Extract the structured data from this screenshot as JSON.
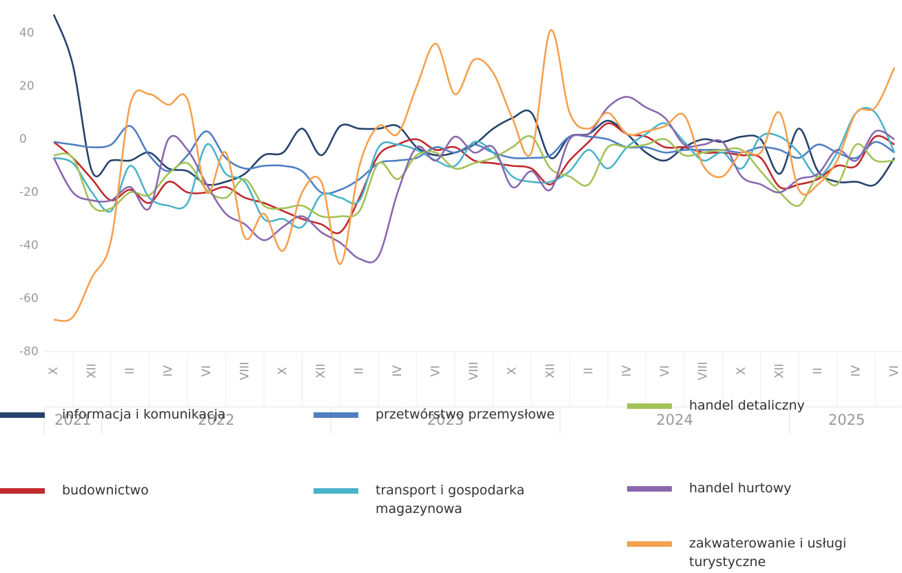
{
  "chart_data": {
    "type": "line",
    "categories": [
      "X",
      null,
      "XII",
      null,
      "II",
      null,
      "IV",
      null,
      "VI",
      null,
      "VIII",
      null,
      "X",
      null,
      "XII",
      null,
      "II",
      null,
      "IV",
      null,
      "VI",
      null,
      "VIII",
      null,
      "X",
      null,
      "XII",
      null,
      "II",
      null,
      "IV",
      null,
      "VI",
      null,
      "VIII",
      null,
      "X",
      null,
      "XII",
      null,
      "II",
      null,
      "IV",
      null,
      "VI"
    ],
    "years": [
      {
        "label": "2021",
        "months": 3
      },
      {
        "label": "2022",
        "months": 12
      },
      {
        "label": "2023",
        "months": 12
      },
      {
        "label": "2024",
        "months": 12
      },
      {
        "label": "2025",
        "months": 6
      }
    ],
    "ylim": [
      -80,
      48
    ],
    "yticks": [
      -80,
      -60,
      -40,
      -20,
      0,
      20,
      40
    ],
    "grid": false,
    "series": [
      {
        "name": "informacja i komunikacja",
        "color": "#26426b",
        "values": [
          47,
          28,
          -12,
          -8,
          -8,
          -5,
          -11,
          -12,
          -17,
          -16,
          -13,
          -6,
          -5,
          4,
          -6,
          5,
          4,
          4,
          5,
          -3,
          -6,
          -5,
          -2,
          4,
          8,
          10,
          -7,
          1,
          2,
          7,
          2,
          -5,
          -8,
          -3,
          0,
          -1,
          1,
          0,
          -13,
          4,
          -12,
          -16,
          -16,
          -17,
          -7
        ]
      },
      {
        "name": "budownictwo",
        "color": "#c0292d",
        "values": [
          -1,
          -7,
          -15,
          -23,
          -19,
          -24,
          -16,
          -20,
          -20,
          -18,
          -22,
          -24,
          -27,
          -30,
          -32,
          -35,
          -22,
          -6,
          -2,
          0,
          -4,
          -3,
          -8,
          -9,
          -10,
          -11,
          -17,
          -8,
          -1,
          6,
          2,
          1,
          -3,
          -3,
          -5,
          -5,
          -6,
          -7,
          -18,
          -17,
          -15,
          -10,
          -10,
          1,
          -2
        ]
      },
      {
        "name": "przetwórstwo przemysłowe",
        "color": "#4f7fc1",
        "values": [
          -1,
          -2,
          -3,
          -2,
          5,
          -6,
          -12,
          -6,
          3,
          -7,
          -11,
          -10,
          -10,
          -12,
          -20,
          -19,
          -15,
          -9,
          -8,
          -7,
          -3,
          -5,
          -2,
          -5,
          -7,
          -7,
          -6,
          1,
          1,
          0,
          -3,
          -3,
          -5,
          -4,
          -4,
          -4,
          -5,
          -3,
          -4,
          -7,
          -2,
          -5,
          -7,
          -1,
          -5
        ]
      },
      {
        "name": "transport i gospodarka magazynowa",
        "color": "#4bb3c9",
        "values": [
          -7,
          -9,
          -20,
          -27,
          -10,
          -22,
          -25,
          -24,
          -2,
          -13,
          -16,
          -30,
          -30,
          -33,
          -21,
          -22,
          -23,
          -3,
          -2,
          -4,
          -8,
          -10,
          -1,
          -5,
          -14,
          -16,
          -16,
          -12,
          -4,
          -11,
          -3,
          2,
          6,
          -1,
          -8,
          -5,
          -11,
          1,
          1,
          -5,
          -14,
          -5,
          10,
          10,
          -5
        ]
      },
      {
        "name": "handel detaliczny",
        "color": "#a2c257",
        "values": [
          -6,
          -7,
          -25,
          -26,
          -20,
          -21,
          -13,
          -9,
          -19,
          -22,
          -15,
          -25,
          -26,
          -25,
          -29,
          -29,
          -27,
          -9,
          -15,
          -6,
          -5,
          -11,
          -9,
          -7,
          -3,
          1,
          -11,
          -14,
          -17,
          -3,
          -3,
          -2,
          0,
          -6,
          -5,
          -4,
          -4,
          -12,
          -20,
          -25,
          -14,
          -17,
          -2,
          -8,
          -8
        ]
      },
      {
        "name": "handel hurtowy",
        "color": "#8a68ae",
        "values": [
          -7,
          -20,
          -23,
          -23,
          -18,
          -26,
          0,
          -4,
          -17,
          -28,
          -32,
          -38,
          -33,
          -29,
          -35,
          -39,
          -45,
          -44,
          -20,
          -3,
          -8,
          1,
          -5,
          -3,
          -18,
          -12,
          -19,
          0,
          2,
          12,
          16,
          12,
          8,
          -2,
          -2,
          -1,
          -14,
          -17,
          -20,
          -15,
          -13,
          -4,
          -8,
          3,
          0
        ]
      },
      {
        "name": "zakwaterowanie i usługi turystyczne",
        "color": "#f5a04e",
        "values": [
          -68,
          -67,
          -52,
          -38,
          13,
          17,
          13,
          15,
          -20,
          -5,
          -37,
          -28,
          -42,
          -20,
          -16,
          -47,
          -10,
          5,
          2,
          20,
          36,
          17,
          30,
          25,
          8,
          -5,
          41,
          10,
          4,
          10,
          2,
          3,
          5,
          9,
          -10,
          -14,
          -5,
          -5,
          10,
          -19,
          -17,
          -8,
          10,
          12,
          27
        ]
      }
    ]
  }
}
